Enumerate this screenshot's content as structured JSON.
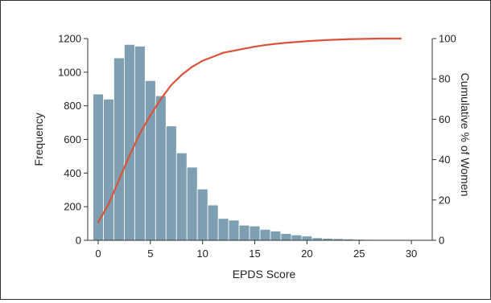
{
  "chart_data": {
    "type": "bar",
    "xlabel": "EPDS Score",
    "ylabel": "Frequency",
    "y2label": "Cumulative % of Women",
    "x": [
      0,
      1,
      2,
      3,
      4,
      5,
      6,
      7,
      8,
      9,
      10,
      11,
      12,
      13,
      14,
      15,
      16,
      17,
      18,
      19,
      20,
      21,
      22,
      23,
      24,
      25,
      26,
      27,
      28,
      29
    ],
    "xticks": [
      "0",
      "5",
      "10",
      "15",
      "20",
      "25",
      "30"
    ],
    "xlim": [
      -1,
      32
    ],
    "ylim": [
      0,
      1200
    ],
    "yticks": [
      "0",
      "200",
      "400",
      "600",
      "800",
      "1000",
      "1200"
    ],
    "y2lim": [
      0,
      100
    ],
    "y2ticks": [
      "0",
      "20",
      "40",
      "60",
      "80",
      "100"
    ],
    "series": [
      {
        "type": "bar",
        "values": [
          870,
          840,
          1085,
          1165,
          1155,
          950,
          860,
          680,
          520,
          435,
          305,
          210,
          130,
          120,
          90,
          85,
          65,
          55,
          40,
          32,
          25,
          15,
          12,
          10,
          8,
          6,
          5,
          3,
          2,
          1
        ],
        "color": "#7d9fb1"
      },
      {
        "type": "line",
        "axis": "right",
        "x": [
          0,
          1,
          2,
          3,
          4,
          5,
          6,
          7,
          8,
          9,
          10,
          11,
          12,
          13,
          14,
          15,
          16,
          17,
          18,
          19,
          20,
          21,
          22,
          23,
          24,
          25,
          26,
          27,
          28,
          29
        ],
        "values": [
          9,
          18,
          30,
          42,
          53,
          62,
          70,
          77,
          82,
          86,
          89,
          91,
          93,
          94,
          95,
          96,
          96.8,
          97.4,
          97.9,
          98.3,
          98.7,
          99,
          99.3,
          99.5,
          99.7,
          99.8,
          99.9,
          100,
          100,
          100
        ],
        "color": "#d9533a"
      }
    ],
    "grid": false,
    "legend": "none"
  }
}
